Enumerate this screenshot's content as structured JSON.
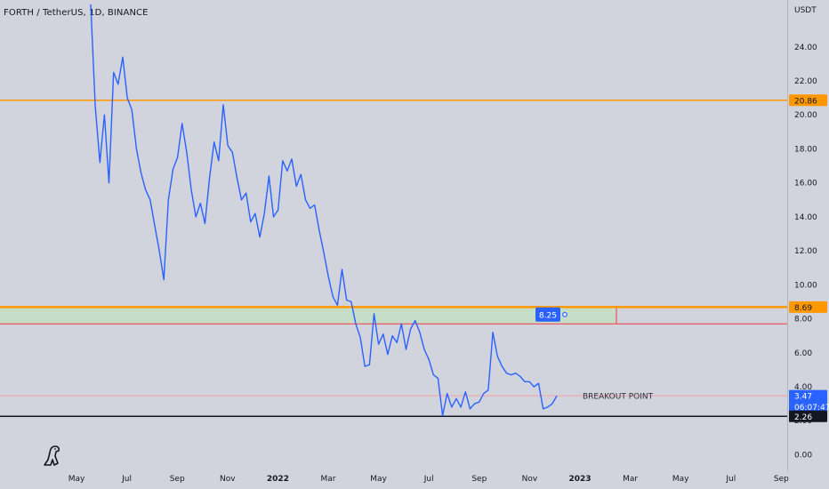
{
  "header": {
    "title": "FORTH / TetherUS, 1D, BINANCE",
    "currency_unit": "USDT"
  },
  "colors": {
    "background": "#d1d4dc",
    "price_line": "#2962ff",
    "resistance_line": "#ff9800",
    "support_line": "#131722",
    "zone_fill": "#c6dec8",
    "zone_edge": "#f23645",
    "last_price_tag": "#2962ff",
    "marker_tag": "#2962ff"
  },
  "chart_data": {
    "type": "line",
    "title": "FORTH / TetherUS, 1D, BINANCE",
    "xlabel": "",
    "ylabel": "USDT",
    "ylim": [
      -0.5,
      26.5
    ],
    "grid": false,
    "y_ticks": [
      "0.00",
      "2.00",
      "4.00",
      "6.00",
      "8.00",
      "10.00",
      "12.00",
      "14.00",
      "16.00",
      "18.00",
      "20.00",
      "22.00",
      "24.00"
    ],
    "x_ticks": [
      {
        "label": "May",
        "year_mark": false
      },
      {
        "label": "Jul",
        "year_mark": false
      },
      {
        "label": "Sep",
        "year_mark": false
      },
      {
        "label": "Nov",
        "year_mark": false
      },
      {
        "label": "2022",
        "year_mark": true
      },
      {
        "label": "Mar",
        "year_mark": false
      },
      {
        "label": "May",
        "year_mark": false
      },
      {
        "label": "Jul",
        "year_mark": false
      },
      {
        "label": "Sep",
        "year_mark": false
      },
      {
        "label": "Nov",
        "year_mark": false
      },
      {
        "label": "2023",
        "year_mark": true
      },
      {
        "label": "Mar",
        "year_mark": false
      },
      {
        "label": "May",
        "year_mark": false
      },
      {
        "label": "Jul",
        "year_mark": false
      },
      {
        "label": "Sep",
        "year_mark": false
      }
    ],
    "series": [
      {
        "values": [
          26.5,
          20.5,
          17.2,
          20.0,
          16.0,
          22.5,
          21.8,
          23.4,
          21.0,
          20.3,
          18.0,
          16.6,
          15.6,
          15.0,
          13.5,
          12.0,
          10.3,
          15.0,
          16.8,
          17.5,
          19.5,
          17.8,
          15.6,
          14.0,
          14.8,
          13.6,
          16.3,
          18.4,
          17.3,
          20.6,
          18.2,
          17.8,
          16.3,
          15.0,
          15.4,
          13.7,
          14.2,
          12.8,
          14.2,
          16.4,
          14.0,
          14.4,
          17.3,
          16.7,
          17.4,
          15.8,
          16.5,
          15.0,
          14.5,
          14.7,
          13.2,
          11.9,
          10.5,
          9.3,
          8.8,
          10.9,
          9.1,
          9.0,
          7.7,
          6.9,
          5.2,
          5.3,
          8.3,
          6.5,
          7.1,
          5.9,
          7.0,
          6.6,
          7.7,
          6.2,
          7.4,
          7.9,
          7.2,
          6.2,
          5.6,
          4.7,
          4.5,
          2.3,
          3.6,
          2.8,
          3.3,
          2.8,
          3.7,
          2.7,
          3.0,
          3.1,
          3.6,
          3.8,
          7.2,
          5.8,
          5.2,
          4.8,
          4.7,
          4.8,
          4.6,
          4.3,
          4.3,
          4.0,
          4.2,
          2.7,
          2.8,
          3.0,
          3.47
        ],
        "levels": [
          {
            "label": "20.86",
            "value": 20.86,
            "kind": "resistance"
          },
          {
            "label": "8.69",
            "value": 8.69,
            "kind": "zone-top"
          },
          {
            "label": "8.25",
            "value": 8.25,
            "kind": "marker"
          },
          {
            "label": "3.47",
            "value": 3.47,
            "kind": "last-price",
            "countdown": "06:07:47"
          },
          {
            "label": "2.26",
            "value": 2.26,
            "kind": "support"
          }
        ],
        "zone": {
          "top": 8.69,
          "bottom": 7.7
        },
        "breakout_label": "BREAKOUT POINT"
      }
    ]
  }
}
